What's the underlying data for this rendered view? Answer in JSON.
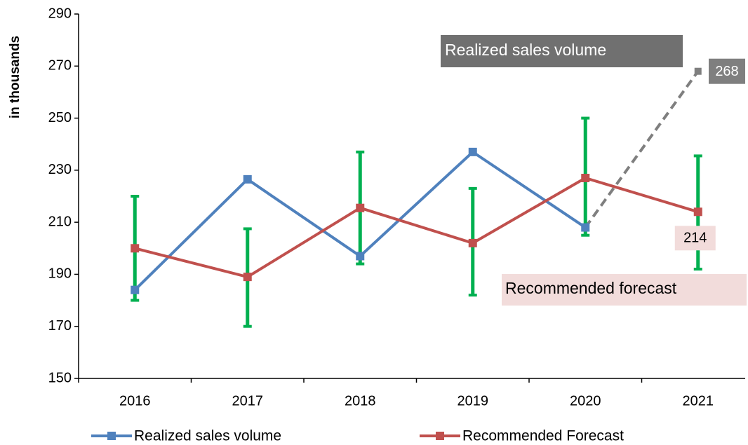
{
  "chart_data": {
    "type": "line",
    "y_label": "in thousands",
    "categories": [
      "2016",
      "2017",
      "2018",
      "2019",
      "2020",
      "2021"
    ],
    "ylim": [
      150,
      290
    ],
    "yticks": [
      150,
      170,
      190,
      210,
      230,
      250,
      270,
      290
    ],
    "series": [
      {
        "name": "Realized sales volume",
        "color": "#4f81bd",
        "values": [
          184,
          226.5,
          197,
          237,
          208,
          null
        ]
      },
      {
        "name": "Recommended Forecast",
        "color": "#c0504d",
        "values": [
          200,
          189,
          215.5,
          202,
          227,
          214
        ],
        "value_labels": [
          null,
          null,
          null,
          null,
          null,
          "214"
        ]
      }
    ],
    "projection": {
      "color": "#7f7f7f",
      "values": [
        null,
        null,
        null,
        null,
        208,
        268
      ]
    },
    "error_bars": {
      "color": "#00b050",
      "low": [
        180,
        170,
        194,
        182,
        205,
        192
      ],
      "high": [
        220,
        207.5,
        237,
        223,
        250,
        235.5
      ]
    },
    "annotations": [
      "Realized sales volume",
      "Recommended forecast"
    ]
  }
}
